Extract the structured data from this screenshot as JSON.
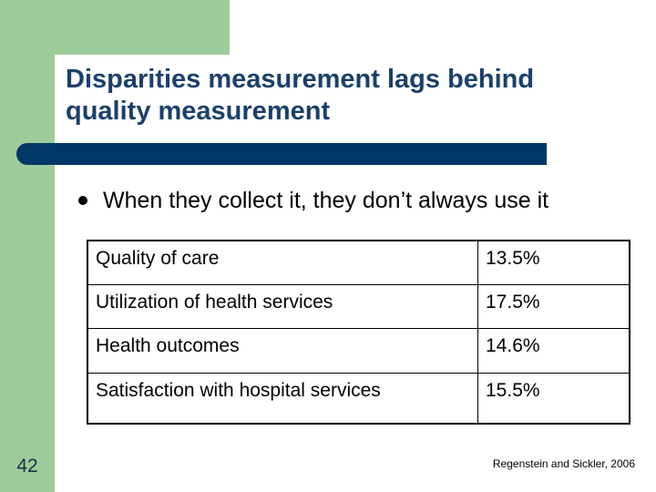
{
  "slide": {
    "title": "Disparities measurement lags behind quality measurement",
    "bullet": "When they collect it, they don’t always use it",
    "table": [
      {
        "label": "Quality of care",
        "value": "13.5%"
      },
      {
        "label": "Utilization of health services",
        "value": "17.5%"
      },
      {
        "label": "Health outcomes",
        "value": "14.6%"
      },
      {
        "label": "Satisfaction with hospital services",
        "value": "15.5%"
      }
    ],
    "slide_number": "42",
    "citation": "Regenstein and Sickler, 2006"
  },
  "colors": {
    "accent_green": "#9fcc9b",
    "title_bar_navy": "#003767",
    "title_text": "#1c3f6b"
  }
}
